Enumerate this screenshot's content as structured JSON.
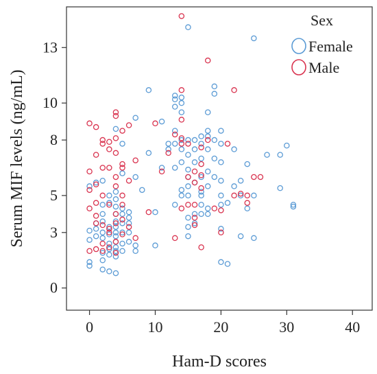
{
  "chart_data": {
    "type": "scatter",
    "title": "",
    "xlabel": "Ham-D scores",
    "ylabel": "Serum MIF levels (ng/mL)",
    "xlim": [
      -3.5,
      43
    ],
    "ylim": [
      -1.2,
      15.2
    ],
    "xticks": [
      0,
      10,
      20,
      30,
      40
    ],
    "yticks": [
      0,
      3,
      5,
      8,
      10,
      13
    ],
    "grid": false,
    "legend": {
      "title": "Sex",
      "position": "top-right"
    },
    "series": [
      {
        "name": "Female",
        "color": "#5b9bd5",
        "points": [
          [
            0,
            1.2
          ],
          [
            0,
            1.4
          ],
          [
            0,
            2.6
          ],
          [
            0,
            3.1
          ],
          [
            0,
            5.5
          ],
          [
            1,
            5.7
          ],
          [
            1,
            2.8
          ],
          [
            1,
            3.2
          ],
          [
            1,
            3.5
          ],
          [
            2,
            1.0
          ],
          [
            2,
            1.5
          ],
          [
            2,
            1.9
          ],
          [
            2,
            2.7
          ],
          [
            2,
            3.0
          ],
          [
            2,
            3.6
          ],
          [
            2,
            4.0
          ],
          [
            2,
            4.5
          ],
          [
            2,
            5.8
          ],
          [
            3,
            0.9
          ],
          [
            3,
            1.8
          ],
          [
            3,
            2.1
          ],
          [
            3,
            2.4
          ],
          [
            3,
            2.9
          ],
          [
            3,
            3.3
          ],
          [
            3,
            4.6
          ],
          [
            3,
            5.0
          ],
          [
            4,
            0.8
          ],
          [
            4,
            1.7
          ],
          [
            4,
            2.0
          ],
          [
            4,
            2.2
          ],
          [
            4,
            2.5
          ],
          [
            4,
            2.8
          ],
          [
            4,
            3.0
          ],
          [
            4,
            3.3
          ],
          [
            4,
            3.6
          ],
          [
            4,
            4.0
          ],
          [
            4,
            4.4
          ],
          [
            4,
            4.8
          ],
          [
            4,
            5.2
          ],
          [
            4,
            8.6
          ],
          [
            5,
            2.0
          ],
          [
            5,
            2.4
          ],
          [
            5,
            3.0
          ],
          [
            5,
            3.5
          ],
          [
            5,
            4.0
          ],
          [
            5,
            4.3
          ],
          [
            5,
            6.2
          ],
          [
            5,
            7.8
          ],
          [
            6,
            2.5
          ],
          [
            6,
            3.0
          ],
          [
            6,
            3.5
          ],
          [
            6,
            3.8
          ],
          [
            6,
            4.1
          ],
          [
            7,
            2.0
          ],
          [
            7,
            2.3
          ],
          [
            7,
            6.0
          ],
          [
            7,
            9.2
          ],
          [
            8,
            5.3
          ],
          [
            9,
            7.3
          ],
          [
            9,
            10.7
          ],
          [
            10,
            2.3
          ],
          [
            10,
            4.1
          ],
          [
            11,
            6.5
          ],
          [
            11,
            9.0
          ],
          [
            12,
            7.5
          ],
          [
            12,
            7.8
          ],
          [
            13,
            4.5
          ],
          [
            13,
            6.5
          ],
          [
            13,
            7.8
          ],
          [
            13,
            8.5
          ],
          [
            13,
            9.8
          ],
          [
            13,
            10.2
          ],
          [
            13,
            10.4
          ],
          [
            14,
            5.0
          ],
          [
            14,
            5.3
          ],
          [
            14,
            6.8
          ],
          [
            14,
            7.5
          ],
          [
            14,
            8.0
          ],
          [
            14,
            9.5
          ],
          [
            14,
            10.0
          ],
          [
            14,
            10.3
          ],
          [
            15,
            2.8
          ],
          [
            15,
            3.3
          ],
          [
            15,
            3.8
          ],
          [
            15,
            5.0
          ],
          [
            15,
            5.5
          ],
          [
            15,
            6.0
          ],
          [
            15,
            6.4
          ],
          [
            15,
            7.2
          ],
          [
            15,
            8.0
          ],
          [
            15,
            14.1
          ],
          [
            16,
            3.5
          ],
          [
            16,
            4.0
          ],
          [
            16,
            5.7
          ],
          [
            16,
            6.8
          ],
          [
            16,
            7.5
          ],
          [
            16,
            8.0
          ],
          [
            17,
            4.0
          ],
          [
            17,
            4.5
          ],
          [
            17,
            5.0
          ],
          [
            17,
            5.2
          ],
          [
            17,
            6.0
          ],
          [
            17,
            7.0
          ],
          [
            17,
            7.8
          ],
          [
            17,
            8.2
          ],
          [
            18,
            4.0
          ],
          [
            18,
            4.3
          ],
          [
            18,
            5.5
          ],
          [
            18,
            6.3
          ],
          [
            18,
            7.5
          ],
          [
            18,
            8.2
          ],
          [
            18,
            8.5
          ],
          [
            18,
            9.5
          ],
          [
            19,
            6.0
          ],
          [
            19,
            7.0
          ],
          [
            19,
            8.0
          ],
          [
            19,
            10.5
          ],
          [
            19,
            10.9
          ],
          [
            20,
            1.4
          ],
          [
            20,
            3.2
          ],
          [
            20,
            4.5
          ],
          [
            20,
            5.0
          ],
          [
            20,
            5.8
          ],
          [
            20,
            6.8
          ],
          [
            20,
            7.8
          ],
          [
            20,
            8.5
          ],
          [
            21,
            1.3
          ],
          [
            21,
            4.6
          ],
          [
            22,
            5.5
          ],
          [
            22,
            7.5
          ],
          [
            23,
            2.8
          ],
          [
            23,
            5.0
          ],
          [
            23,
            5.8
          ],
          [
            24,
            4.3
          ],
          [
            24,
            6.7
          ],
          [
            25,
            2.7
          ],
          [
            25,
            5.0
          ],
          [
            25,
            13.5
          ],
          [
            27,
            7.2
          ],
          [
            29,
            5.4
          ],
          [
            29,
            7.2
          ],
          [
            30,
            7.7
          ],
          [
            31,
            4.4
          ],
          [
            31,
            4.5
          ]
        ]
      },
      {
        "name": "Male",
        "color": "#d9334f",
        "points": [
          [
            0,
            2.0
          ],
          [
            0,
            4.3
          ],
          [
            0,
            5.3
          ],
          [
            0,
            6.3
          ],
          [
            0,
            8.9
          ],
          [
            1,
            2.1
          ],
          [
            1,
            3.5
          ],
          [
            1,
            3.9
          ],
          [
            1,
            4.6
          ],
          [
            1,
            5.6
          ],
          [
            1,
            7.2
          ],
          [
            1,
            8.7
          ],
          [
            2,
            2.0
          ],
          [
            2,
            2.4
          ],
          [
            2,
            3.4
          ],
          [
            2,
            5.0
          ],
          [
            2,
            6.5
          ],
          [
            2,
            7.8
          ],
          [
            2,
            8.0
          ],
          [
            3,
            2.2
          ],
          [
            3,
            3.0
          ],
          [
            3,
            3.2
          ],
          [
            3,
            4.5
          ],
          [
            3,
            6.5
          ],
          [
            3,
            7.5
          ],
          [
            3,
            7.9
          ],
          [
            4,
            1.9
          ],
          [
            4,
            2.5
          ],
          [
            4,
            3.5
          ],
          [
            4,
            4.0
          ],
          [
            4,
            5.5
          ],
          [
            4,
            6.0
          ],
          [
            4,
            7.3
          ],
          [
            4,
            8.1
          ],
          [
            4,
            9.3
          ],
          [
            4,
            9.5
          ],
          [
            5,
            2.9
          ],
          [
            5,
            3.7
          ],
          [
            5,
            4.5
          ],
          [
            5,
            5.0
          ],
          [
            5,
            6.5
          ],
          [
            5,
            6.7
          ],
          [
            5,
            8.5
          ],
          [
            6,
            3.3
          ],
          [
            6,
            5.8
          ],
          [
            6,
            8.8
          ],
          [
            7,
            2.7
          ],
          [
            7,
            6.9
          ],
          [
            9,
            4.1
          ],
          [
            10,
            8.9
          ],
          [
            11,
            6.3
          ],
          [
            12,
            7.3
          ],
          [
            13,
            2.7
          ],
          [
            13,
            8.3
          ],
          [
            14,
            4.3
          ],
          [
            14,
            7.8
          ],
          [
            14,
            8.1
          ],
          [
            14,
            9.1
          ],
          [
            14,
            10.7
          ],
          [
            14,
            14.7
          ],
          [
            15,
            4.5
          ],
          [
            15,
            6.0
          ],
          [
            15,
            7.8
          ],
          [
            16,
            3.4
          ],
          [
            16,
            3.8
          ],
          [
            16,
            4.5
          ],
          [
            16,
            5.7
          ],
          [
            16,
            6.3
          ],
          [
            17,
            2.2
          ],
          [
            17,
            5.4
          ],
          [
            17,
            6.1
          ],
          [
            17,
            6.7
          ],
          [
            17,
            7.6
          ],
          [
            18,
            8.0
          ],
          [
            18,
            12.3
          ],
          [
            19,
            4.3
          ],
          [
            20,
            3.0
          ],
          [
            20,
            4.2
          ],
          [
            21,
            7.8
          ],
          [
            22,
            5.0
          ],
          [
            22,
            10.7
          ],
          [
            23,
            5.1
          ],
          [
            24,
            4.6
          ],
          [
            24,
            5.0
          ],
          [
            25,
            6.0
          ],
          [
            26,
            6.0
          ]
        ]
      }
    ]
  }
}
